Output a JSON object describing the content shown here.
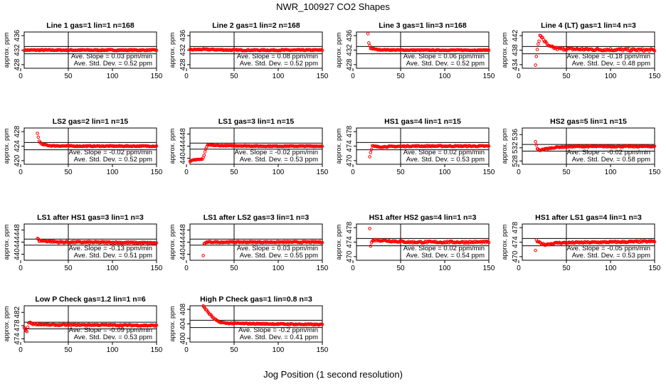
{
  "figure": {
    "title": "NWR_100927  CO2 Shapes",
    "xlabel": "Jog Position (1 second resolution)"
  },
  "style": {
    "point_color": "#ff0000",
    "line_color": "#000000",
    "background": "#ffffff"
  },
  "chart_data": [
    {
      "type": "scatter",
      "title": "Line 1 gas=1 lin=1 n=168",
      "ylabel": "approx. ppm",
      "xlim": [
        0,
        150
      ],
      "ylim": [
        427,
        437
      ],
      "xticks": [
        0,
        50,
        100,
        150
      ],
      "yticks": [
        428,
        432,
        436
      ],
      "hlines": [
        433,
        431
      ],
      "vline": 50,
      "slope_text": "Ave. Slope =  0.03  ppm/min",
      "std_text": "Ave. Std. Dev. =  0.52  ppm",
      "series": [
        {
          "x_start": 0,
          "x_end": 150,
          "points": [
            [
              0,
              432.0
            ],
            [
              10,
              432.0
            ],
            [
              30,
              432.0
            ],
            [
              60,
              432.0
            ],
            [
              100,
              432.0
            ],
            [
              150,
              432.0
            ]
          ],
          "noise": 0.15
        }
      ]
    },
    {
      "type": "scatter",
      "title": "Line 2 gas=1 lin=2 n=168",
      "ylabel": "approx. ppm",
      "xlim": [
        0,
        150
      ],
      "ylim": [
        427,
        437
      ],
      "xticks": [
        0,
        50,
        100,
        150
      ],
      "yticks": [
        428,
        432,
        436
      ],
      "hlines": [
        433,
        431
      ],
      "vline": 50,
      "slope_text": "Ave. Slope =  0.08  ppm/min",
      "std_text": "Ave. Std. Dev. =  0.52  ppm",
      "series": [
        {
          "x_start": 0,
          "x_end": 150,
          "points": [
            [
              0,
              432.1
            ],
            [
              15,
              432.2
            ],
            [
              50,
              432.0
            ],
            [
              100,
              432.0
            ],
            [
              150,
              432.0
            ]
          ],
          "noise": 0.15
        }
      ]
    },
    {
      "type": "scatter",
      "title": "Line 3 gas=1 lin=3 n=168",
      "ylabel": "approx. ppm",
      "xlim": [
        0,
        150
      ],
      "ylim": [
        427,
        437
      ],
      "xticks": [
        0,
        50,
        100,
        150
      ],
      "yticks": [
        428,
        432,
        436
      ],
      "hlines": [
        433,
        431
      ],
      "vline": 50,
      "slope_text": "Ave. Slope =  0.06  ppm/min",
      "std_text": "Ave. Std. Dev. =  0.52  ppm",
      "series": [
        {
          "x_start": 13,
          "x_end": 150,
          "points": [
            [
              13,
              436.5
            ],
            [
              14,
              434.0
            ],
            [
              16,
              432.5
            ],
            [
              25,
              432.1
            ],
            [
              60,
              432.0
            ],
            [
              150,
              432.0
            ]
          ],
          "noise": 0.1
        }
      ]
    },
    {
      "type": "scatter",
      "title": "Line 4 (LT) gas=1 lin=4 n=3",
      "ylabel": "approx. ppm",
      "xlim": [
        0,
        150
      ],
      "ylim": [
        433,
        443
      ],
      "xticks": [
        0,
        50,
        100,
        150
      ],
      "yticks": [
        434,
        438,
        442
      ],
      "hlines": [
        439,
        437
      ],
      "vline": 50,
      "slope_text": "Ave. Slope =  -0.18  ppm/min",
      "std_text": "Ave. Std. Dev. =  0.48  ppm",
      "series": [
        {
          "x_start": 15,
          "x_end": 150,
          "points": [
            [
              15,
              434.2
            ],
            [
              16,
              436.5
            ],
            [
              18,
              439.5
            ],
            [
              20,
              441.8
            ],
            [
              23,
              441.5
            ],
            [
              25,
              440.5
            ],
            [
              30,
              439.0
            ],
            [
              40,
              438.4
            ],
            [
              70,
              438.2
            ],
            [
              150,
              438.0
            ]
          ],
          "noise": 0.35
        }
      ]
    },
    {
      "type": "scatter",
      "title": "LS2 gas=2 lin=1 n=15",
      "ylabel": "approx. ppm",
      "xlim": [
        0,
        150
      ],
      "ylim": [
        419,
        429
      ],
      "xticks": [
        0,
        50,
        100,
        150
      ],
      "yticks": [
        420,
        424,
        428
      ],
      "hlines": [
        425,
        423
      ],
      "vline": 50,
      "slope_text": "Ave. Slope =  -0.02  ppm/min",
      "std_text": "Ave. Std. Dev. =  0.52  ppm",
      "series": [
        {
          "x_start": 15,
          "x_end": 150,
          "points": [
            [
              15,
              427.5
            ],
            [
              17,
              425.4
            ],
            [
              20,
              424.5
            ],
            [
              30,
              424.1
            ],
            [
              60,
              424.0
            ],
            [
              150,
              424.0
            ]
          ],
          "noise": 0.12
        }
      ]
    },
    {
      "type": "scatter",
      "title": "LS1 gas=3 lin=1 n=15",
      "ylabel": "approx. ppm",
      "xlim": [
        0,
        150
      ],
      "ylim": [
        438,
        450
      ],
      "xticks": [
        0,
        50,
        100,
        150
      ],
      "yticks": [
        440,
        444,
        448
      ],
      "hlines": [
        445,
        443
      ],
      "vline": 50,
      "slope_text": "Ave. Slope =  -0.02  ppm/min",
      "std_text": "Ave. Std. Dev. =  0.53  ppm",
      "series": [
        {
          "x_start": 0,
          "x_end": 150,
          "points": [
            [
              0,
              439.0
            ],
            [
              4,
              439.4
            ],
            [
              8,
              439.6
            ],
            [
              14,
              439.6
            ],
            [
              16,
              441.0
            ],
            [
              18,
              443.0
            ],
            [
              20,
              444.4
            ],
            [
              30,
              444.2
            ],
            [
              80,
              444.0
            ],
            [
              150,
              444.0
            ]
          ],
          "noise": 0.12
        }
      ]
    },
    {
      "type": "scatter",
      "title": "HS1 gas=4 lin=1 n=15",
      "ylabel": "approx. ppm",
      "xlim": [
        0,
        150
      ],
      "ylim": [
        469,
        479
      ],
      "xticks": [
        0,
        50,
        100,
        150
      ],
      "yticks": [
        470,
        474,
        478
      ],
      "hlines": [
        475,
        473
      ],
      "vline": 50,
      "slope_text": "Ave. Slope =  0.02  ppm/min",
      "std_text": "Ave. Std. Dev. =  0.53  ppm",
      "series": [
        {
          "x_start": 15,
          "x_end": 150,
          "points": [
            [
              15,
              471.2
            ],
            [
              18,
              474.0
            ],
            [
              25,
              473.8
            ],
            [
              60,
              474.0
            ],
            [
              150,
              474.0
            ]
          ],
          "noise": 0.15
        }
      ]
    },
    {
      "type": "scatter",
      "title": "HS2 gas=5 lin=1 n=15",
      "ylabel": "approx. ppm",
      "xlim": [
        0,
        150
      ],
      "ylim": [
        527,
        538
      ],
      "xticks": [
        0,
        50,
        100,
        150
      ],
      "yticks": [
        528,
        532,
        536
      ],
      "hlines": [
        533,
        531
      ],
      "vline": 50,
      "slope_text": "Ave. Slope =  -0.02  ppm/min",
      "std_text": "Ave. Std. Dev. =  0.58  ppm",
      "series": [
        {
          "x_start": 15,
          "x_end": 150,
          "points": [
            [
              15,
              533.8
            ],
            [
              17,
              531.8
            ],
            [
              19,
              531.2
            ],
            [
              25,
              531.6
            ],
            [
              40,
              532.2
            ],
            [
              60,
              532.4
            ],
            [
              100,
              532.4
            ],
            [
              150,
              532.4
            ]
          ],
          "noise": 0.15
        }
      ]
    },
    {
      "type": "scatter",
      "title": "LS1 after HS1 gas=3 lin=1 n=3",
      "ylabel": "approx. ppm",
      "xlim": [
        0,
        150
      ],
      "ylim": [
        438,
        450
      ],
      "xticks": [
        0,
        50,
        100,
        150
      ],
      "yticks": [
        440,
        444,
        448
      ],
      "hlines": [
        445,
        443
      ],
      "vline": 50,
      "slope_text": "Ave. Slope =  -0.13  ppm/min",
      "std_text": "Ave. Std. Dev. =  0.51  ppm",
      "series": [
        {
          "x_start": 15,
          "x_end": 150,
          "points": [
            [
              15,
              445.2
            ],
            [
              17,
              444.5
            ],
            [
              22,
              444.4
            ],
            [
              40,
              444.0
            ],
            [
              100,
              443.9
            ],
            [
              150,
              443.7
            ]
          ],
          "noise": 0.25
        }
      ]
    },
    {
      "type": "scatter",
      "title": "LS1 after LS2 gas=3 lin=1 n=3",
      "ylabel": "approx. ppm",
      "xlim": [
        0,
        150
      ],
      "ylim": [
        438,
        450
      ],
      "xticks": [
        0,
        50,
        100,
        150
      ],
      "yticks": [
        440,
        444,
        448
      ],
      "hlines": [
        445,
        443
      ],
      "vline": 50,
      "slope_text": "Ave. Slope =  0.03  ppm/min",
      "std_text": "Ave. Std. Dev. =  0.55  ppm",
      "series": [
        {
          "x_start": 15,
          "x_end": 150,
          "points": [
            [
              15,
              439.5
            ],
            [
              16,
              443.5
            ],
            [
              20,
              444.0
            ],
            [
              60,
              444.0
            ],
            [
              150,
              444.0
            ]
          ],
          "noise": 0.18
        }
      ]
    },
    {
      "type": "scatter",
      "title": "HS1 after HS2 gas=4 lin=1 n=3",
      "ylabel": "approx. ppm",
      "xlim": [
        0,
        150
      ],
      "ylim": [
        469,
        479
      ],
      "xticks": [
        0,
        50,
        100,
        150
      ],
      "yticks": [
        470,
        474,
        478
      ],
      "hlines": [
        475,
        473
      ],
      "vline": 50,
      "slope_text": "Ave. Slope =  0.02  ppm/min",
      "std_text": "Ave. Std. Dev. =  0.54  ppm",
      "series": [
        {
          "x_start": 15,
          "x_end": 150,
          "points": [
            [
              15,
              477.8
            ],
            [
              16,
              472.8
            ],
            [
              17,
              474.0
            ],
            [
              20,
              474.6
            ],
            [
              60,
              474.0
            ],
            [
              150,
              474.0
            ]
          ],
          "noise": 0.25
        }
      ]
    },
    {
      "type": "scatter",
      "title": "HS1 after LS1 gas=4 lin=1 n=3",
      "ylabel": "approx. ppm",
      "xlim": [
        0,
        150
      ],
      "ylim": [
        469,
        479
      ],
      "xticks": [
        0,
        50,
        100,
        150
      ],
      "yticks": [
        470,
        474,
        478
      ],
      "hlines": [
        475,
        473
      ],
      "vline": 50,
      "slope_text": "Ave. Slope =  -0.05  ppm/min",
      "std_text": "Ave. Std. Dev. =  0.53  ppm",
      "series": [
        {
          "x_start": 15,
          "x_end": 150,
          "points": [
            [
              15,
              471.8
            ],
            [
              16,
              474.4
            ],
            [
              18,
              474.0
            ],
            [
              25,
              473.3
            ],
            [
              40,
              473.8
            ],
            [
              100,
              474.0
            ],
            [
              150,
              474.2
            ]
          ],
          "noise": 0.22
        }
      ]
    },
    {
      "type": "scatter",
      "title": "Low P Check gas=1.2 lin=1 n=6",
      "ylabel": "approx. ppm",
      "xlim": [
        0,
        150
      ],
      "ylim": [
        473,
        484
      ],
      "xticks": [
        0,
        50,
        100,
        150
      ],
      "yticks": [
        474,
        478,
        482
      ],
      "hlines": [
        479,
        477
      ],
      "vline": 50,
      "slope_text": "Ave. Slope =  -0.09  ppm/min",
      "std_text": "Ave. Std. Dev. =  0.53  ppm",
      "series": [
        {
          "x_start": 0,
          "x_end": 150,
          "points": [
            [
              0,
              477.3
            ],
            [
              3,
              476.0
            ],
            [
              5,
              479.0
            ],
            [
              10,
              478.5
            ],
            [
              30,
              478.2
            ],
            [
              80,
              478.2
            ],
            [
              150,
              478.0
            ]
          ],
          "noise": 0.2
        }
      ]
    },
    {
      "type": "scatter",
      "title": "High P Check gas=1 lin=0.8 n=3",
      "ylabel": "approx. ppm",
      "xlim": [
        0,
        150
      ],
      "ylim": [
        399,
        409
      ],
      "xticks": [
        0,
        50,
        100,
        150
      ],
      "yticks": [
        400,
        404,
        408
      ],
      "hlines": [
        405,
        403
      ],
      "vline": 50,
      "slope_text": "Ave. Slope =  -0.2  ppm/min",
      "std_text": "Ave. Std. Dev. =  0.41  ppm",
      "series": [
        {
          "x_start": 15,
          "x_end": 150,
          "points": [
            [
              15,
              409.0
            ],
            [
              18,
              408.0
            ],
            [
              22,
              406.8
            ],
            [
              27,
              405.5
            ],
            [
              32,
              404.6
            ],
            [
              40,
              404.2
            ],
            [
              60,
              404.1
            ],
            [
              150,
              403.8
            ]
          ],
          "noise": 0.15
        }
      ]
    }
  ]
}
